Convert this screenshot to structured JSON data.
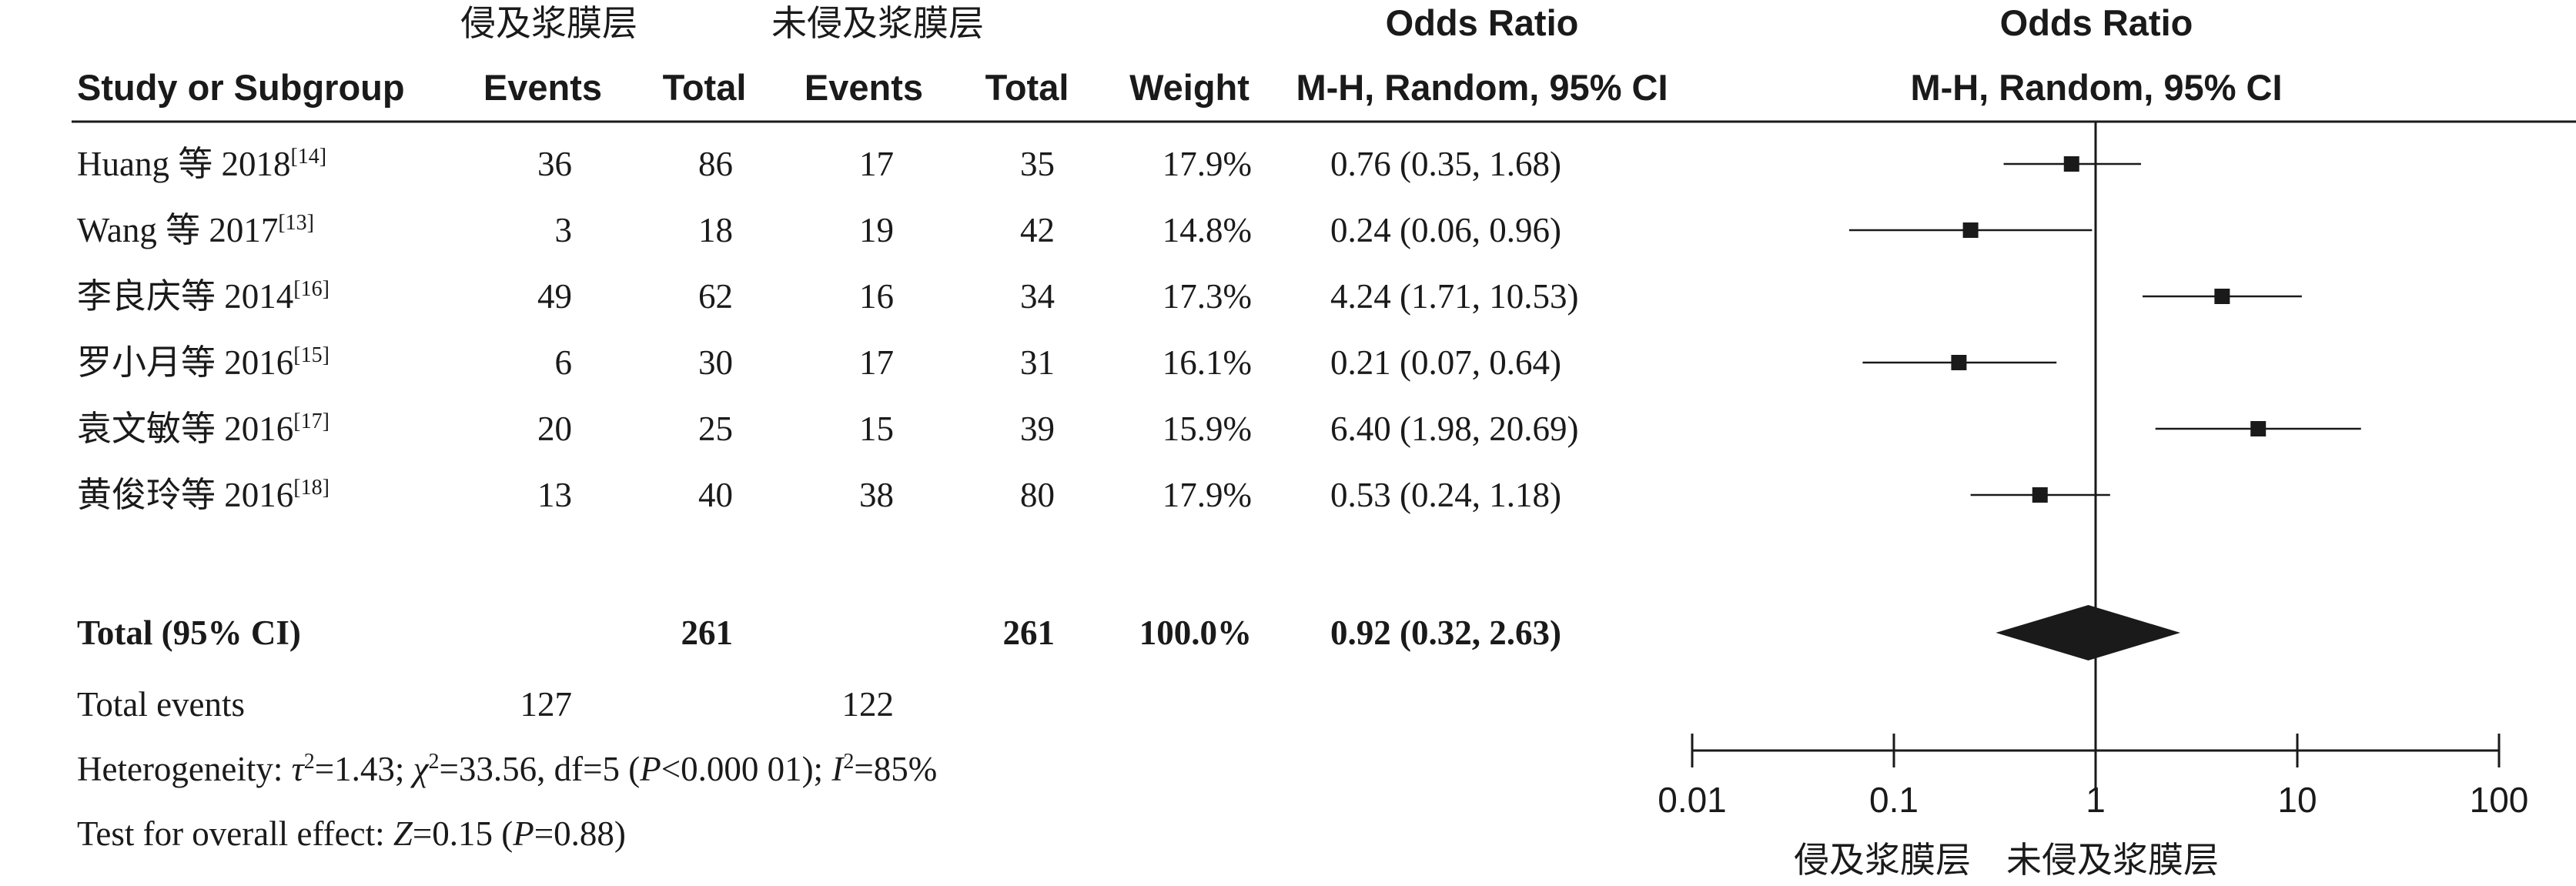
{
  "header": {
    "group_exp": "侵及浆膜层",
    "group_ctrl": "未侵及浆膜层",
    "study_col": "Study or Subgroup",
    "events_exp": "Events",
    "total_exp": "Total",
    "events_ctrl": "Events",
    "total_ctrl": "Total",
    "weight": "Weight",
    "or_title_table": "Odds Ratio",
    "or_method_table": "M-H, Random, 95% CI",
    "or_title_plot": "Odds Ratio",
    "or_method_plot": "M-H, Random, 95% CI"
  },
  "studies": [
    {
      "name": "Huang 等 2018",
      "ref": "[14]",
      "events_exp": "36",
      "total_exp": "86",
      "events_ctrl": "17",
      "total_ctrl": "35",
      "weight": "17.9%",
      "ci_text": "0.76 (0.35, 1.68)"
    },
    {
      "name": "Wang 等 2017",
      "ref": "[13]",
      "events_exp": "3",
      "total_exp": "18",
      "events_ctrl": "19",
      "total_ctrl": "42",
      "weight": "14.8%",
      "ci_text": "0.24 (0.06, 0.96)"
    },
    {
      "name": "李良庆等 2014",
      "ref": "[16]",
      "events_exp": "49",
      "total_exp": "62",
      "events_ctrl": "16",
      "total_ctrl": "34",
      "weight": "17.3%",
      "ci_text": "4.24 (1.71, 10.53)"
    },
    {
      "name": "罗小月等 2016",
      "ref": "[15]",
      "events_exp": "6",
      "total_exp": "30",
      "events_ctrl": "17",
      "total_ctrl": "31",
      "weight": "16.1%",
      "ci_text": "0.21 (0.07, 0.64)"
    },
    {
      "name": "袁文敏等 2016",
      "ref": "[17]",
      "events_exp": "20",
      "total_exp": "25",
      "events_ctrl": "15",
      "total_ctrl": "39",
      "weight": "15.9%",
      "ci_text": "6.40 (1.98, 20.69)"
    },
    {
      "name": "黄俊玲等 2016",
      "ref": "[18]",
      "events_exp": "13",
      "total_exp": "40",
      "events_ctrl": "38",
      "total_ctrl": "80",
      "weight": "17.9%",
      "ci_text": "0.53 (0.24, 1.18)"
    }
  ],
  "total": {
    "label": "Total (95% CI)",
    "total_exp": "261",
    "total_ctrl": "261",
    "weight": "100.0%",
    "ci_text": "0.92 (0.32, 2.63)"
  },
  "events_row": {
    "label": "Total events",
    "events_exp": "127",
    "events_ctrl": "122"
  },
  "footer": {
    "heterogeneity": {
      "prefix": "Heterogeneity: ",
      "tau": "τ",
      "tau_val": "=1.43; ",
      "chi": "χ",
      "chi_val": "=33.56, df=5 (",
      "p": "P",
      "p_val": "<0.000 01); ",
      "i": "I",
      "i_val": "=85%",
      "sq": "2"
    },
    "overall": {
      "prefix": "Test for overall effect: ",
      "z": "Z",
      "z_val": "=0.15 (",
      "p": "P",
      "p_val": "=0.88)"
    }
  },
  "chart_data": {
    "type": "forest",
    "scale": "log",
    "xlim": [
      0.01,
      100
    ],
    "ticks": [
      0.01,
      0.1,
      1,
      10,
      100
    ],
    "tick_labels": [
      "0.01",
      "0.1",
      "1",
      "10",
      "100"
    ],
    "favours_left": "侵及浆膜层",
    "favours_right": "未侵及浆膜层",
    "points": [
      {
        "or": 0.76,
        "lo": 0.35,
        "hi": 1.68
      },
      {
        "or": 0.24,
        "lo": 0.06,
        "hi": 0.96
      },
      {
        "or": 4.24,
        "lo": 1.71,
        "hi": 10.53
      },
      {
        "or": 0.21,
        "lo": 0.07,
        "hi": 0.64
      },
      {
        "or": 6.4,
        "lo": 1.98,
        "hi": 20.69
      },
      {
        "or": 0.53,
        "lo": 0.24,
        "hi": 1.18
      }
    ],
    "pooled": {
      "or": 0.92,
      "lo": 0.32,
      "hi": 2.63
    }
  }
}
